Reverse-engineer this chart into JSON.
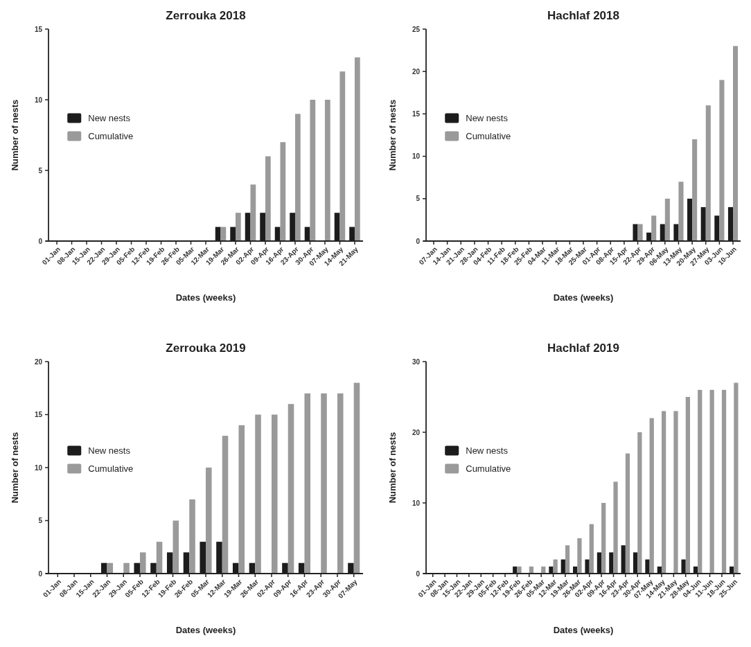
{
  "chart_data": [
    {
      "type": "bar",
      "title": "Zerrouka 2018",
      "xlabel": "Dates (weeks)",
      "ylabel": "Number of nests",
      "legend": "left",
      "ylim": [
        0,
        15
      ],
      "yticks": [
        0,
        5,
        10,
        15
      ],
      "categories": [
        "01-Jan",
        "08-Jan",
        "15-Jan",
        "22-Jan",
        "29-Jan",
        "05-Feb",
        "12-Feb",
        "19-Feb",
        "26-Feb",
        "05-Mar",
        "12-Mar",
        "19-Mar",
        "26-Mar",
        "02-Apr",
        "09-Apr",
        "16-Apr",
        "23-Apr",
        "30-Apr",
        "07-May",
        "14-May",
        "21-May"
      ],
      "series": [
        {
          "name": "New nests",
          "color": "#1c1c1c",
          "values": [
            0,
            0,
            0,
            0,
            0,
            0,
            0,
            0,
            0,
            0,
            0,
            1,
            1,
            2,
            2,
            1,
            2,
            1,
            0,
            2,
            1
          ]
        },
        {
          "name": "Cumulative",
          "color": "#9a9a9a",
          "values": [
            0,
            0,
            0,
            0,
            0,
            0,
            0,
            0,
            0,
            0,
            0,
            1,
            2,
            4,
            6,
            7,
            9,
            10,
            10,
            12,
            13
          ]
        }
      ]
    },
    {
      "type": "bar",
      "title": "Hachlaf 2018",
      "xlabel": "Dates (weeks)",
      "ylabel": "Number of nests",
      "legend": "left",
      "ylim": [
        0,
        25
      ],
      "yticks": [
        0,
        5,
        10,
        15,
        20,
        25
      ],
      "categories": [
        "07-Jan",
        "14-Jan",
        "21-Jan",
        "28-Jan",
        "04-Feb",
        "11-Feb",
        "18-Feb",
        "25-Feb",
        "04-Mar",
        "11-Mar",
        "18-Mar",
        "25-Mar",
        "01-Apr",
        "08-Apr",
        "15-Apr",
        "22-Apr",
        "29-Apr",
        "06-May",
        "13-May",
        "20-May",
        "27-May",
        "03-Jun",
        "10-Jun"
      ],
      "series": [
        {
          "name": "New nests",
          "color": "#1c1c1c",
          "values": [
            0,
            0,
            0,
            0,
            0,
            0,
            0,
            0,
            0,
            0,
            0,
            0,
            0,
            0,
            0,
            2,
            1,
            2,
            2,
            5,
            4,
            3,
            4
          ]
        },
        {
          "name": "Cumulative",
          "color": "#9a9a9a",
          "values": [
            0,
            0,
            0,
            0,
            0,
            0,
            0,
            0,
            0,
            0,
            0,
            0,
            0,
            0,
            0,
            2,
            3,
            5,
            7,
            12,
            16,
            19,
            23
          ]
        }
      ]
    },
    {
      "type": "bar",
      "title": "Zerrouka 2019",
      "xlabel": "Dates (weeks)",
      "ylabel": "Number of nests",
      "legend": "left",
      "ylim": [
        0,
        20
      ],
      "yticks": [
        0,
        5,
        10,
        15,
        20
      ],
      "categories": [
        "01-Jan",
        "08-Jan",
        "15-Jan",
        "22-Jan",
        "29-Jan",
        "05-Feb",
        "12-Feb",
        "19-Feb",
        "26-Feb",
        "05-Mar",
        "12-Mar",
        "19-Mar",
        "26-Mar",
        "02-Apr",
        "09-Apr",
        "16-Apr",
        "23-Apr",
        "30-Apr",
        "07-May"
      ],
      "series": [
        {
          "name": "New nests",
          "color": "#1c1c1c",
          "values": [
            0,
            0,
            0,
            1,
            0,
            1,
            1,
            2,
            2,
            3,
            3,
            1,
            1,
            0,
            1,
            1,
            0,
            0,
            1
          ]
        },
        {
          "name": "Cumulative",
          "color": "#9a9a9a",
          "values": [
            0,
            0,
            0,
            1,
            1,
            2,
            3,
            5,
            7,
            10,
            13,
            14,
            15,
            15,
            16,
            17,
            17,
            17,
            18
          ]
        }
      ]
    },
    {
      "type": "bar",
      "title": "Hachlaf 2019",
      "xlabel": "Dates (weeks)",
      "ylabel": "Number of nests",
      "legend": "left",
      "ylim": [
        0,
        30
      ],
      "yticks": [
        0,
        10,
        20,
        30
      ],
      "categories": [
        "01-Jan",
        "08-Jan",
        "15-Jan",
        "22-Jan",
        "29-Jan",
        "05-Feb",
        "12-Feb",
        "19-Feb",
        "26-Feb",
        "05-Mar",
        "12-Mar",
        "19-Mar",
        "26-Mar",
        "02-Apr",
        "09-Apr",
        "16-Apr",
        "23-Apr",
        "30-Apr",
        "07-May",
        "14-May",
        "21-May",
        "28-May",
        "04-Jun",
        "11-Jun",
        "18-Jun",
        "25-Jun"
      ],
      "series": [
        {
          "name": "New nests",
          "color": "#1c1c1c",
          "values": [
            0,
            0,
            0,
            0,
            0,
            0,
            0,
            1,
            0,
            0,
            1,
            2,
            1,
            2,
            3,
            3,
            4,
            3,
            2,
            1,
            0,
            2,
            1,
            0,
            0,
            1
          ]
        },
        {
          "name": "Cumulative",
          "color": "#9a9a9a",
          "values": [
            0,
            0,
            0,
            0,
            0,
            0,
            0,
            1,
            1,
            1,
            2,
            4,
            5,
            7,
            10,
            13,
            17,
            20,
            22,
            23,
            23,
            25,
            26,
            26,
            26,
            27
          ]
        }
      ]
    }
  ]
}
